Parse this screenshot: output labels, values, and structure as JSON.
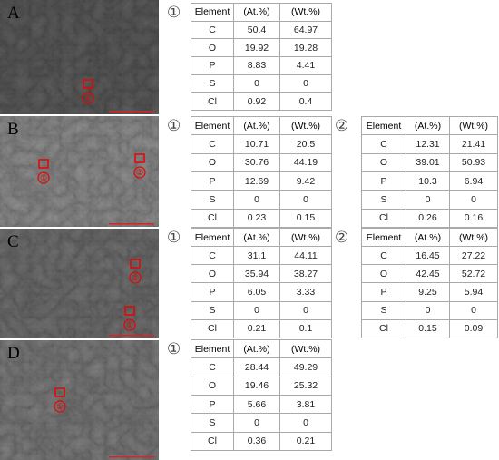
{
  "panels": [
    {
      "label": "A",
      "spots": [
        "①"
      ],
      "tables": [
        {
          "marker": "①",
          "header": [
            "Element",
            "(At.%)",
            "(Wt.%)"
          ],
          "rows": [
            [
              "C",
              "50.4",
              "64.97"
            ],
            [
              "O",
              "19.92",
              "19.28"
            ],
            [
              "P",
              "8.83",
              "4.41"
            ],
            [
              "S",
              "0",
              "0"
            ],
            [
              "Cl",
              "0.92",
              "0.4"
            ]
          ]
        }
      ]
    },
    {
      "label": "B",
      "spots": [
        "①",
        "②"
      ],
      "tables": [
        {
          "marker": "①",
          "header": [
            "Element",
            "(At.%)",
            "(Wt.%)"
          ],
          "rows": [
            [
              "C",
              "10.71",
              "20.5"
            ],
            [
              "O",
              "30.76",
              "44.19"
            ],
            [
              "P",
              "12.69",
              "9.42"
            ],
            [
              "S",
              "0",
              "0"
            ],
            [
              "Cl",
              "0.23",
              "0.15"
            ]
          ]
        },
        {
          "marker": "②",
          "header": [
            "Element",
            "(At.%)",
            "(Wt.%)"
          ],
          "rows": [
            [
              "C",
              "12.31",
              "21.41"
            ],
            [
              "O",
              "39.01",
              "50.93"
            ],
            [
              "P",
              "10.3",
              "6.94"
            ],
            [
              "S",
              "0",
              "0"
            ],
            [
              "Cl",
              "0.26",
              "0.16"
            ]
          ]
        }
      ]
    },
    {
      "label": "C",
      "spots": [
        "①",
        "②"
      ],
      "tables": [
        {
          "marker": "①",
          "header": [
            "Element",
            "(At.%)",
            "(Wt.%)"
          ],
          "rows": [
            [
              "C",
              "31.1",
              "44.11"
            ],
            [
              "O",
              "35.94",
              "38.27"
            ],
            [
              "P",
              "6.05",
              "3.33"
            ],
            [
              "S",
              "0",
              "0"
            ],
            [
              "Cl",
              "0.21",
              "0.1"
            ]
          ]
        },
        {
          "marker": "②",
          "header": [
            "Element",
            "(At.%)",
            "(Wt.%)"
          ],
          "rows": [
            [
              "C",
              "16.45",
              "27.22"
            ],
            [
              "O",
              "42.45",
              "52.72"
            ],
            [
              "P",
              "9.25",
              "5.94"
            ],
            [
              "S",
              "0",
              "0"
            ],
            [
              "Cl",
              "0.15",
              "0.09"
            ]
          ]
        }
      ]
    },
    {
      "label": "D",
      "spots": [
        "①"
      ],
      "tables": [
        {
          "marker": "①",
          "header": [
            "Element",
            "(At.%)",
            "(Wt.%)"
          ],
          "rows": [
            [
              "C",
              "28.44",
              "49.29"
            ],
            [
              "O",
              "19.46",
              "25.32"
            ],
            [
              "P",
              "5.66",
              "3.81"
            ],
            [
              "S",
              "0",
              "0"
            ],
            [
              "Cl",
              "0.36",
              "0.21"
            ]
          ]
        }
      ]
    }
  ]
}
